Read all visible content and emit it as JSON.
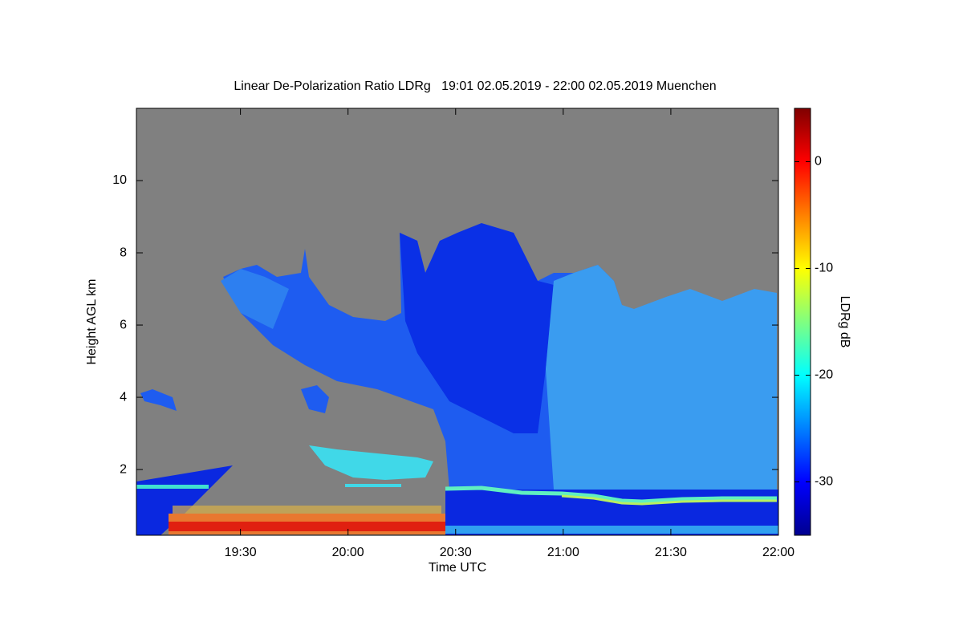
{
  "chart_data": {
    "type": "heatmap",
    "title": "Linear De-Polarization Ratio LDRg   19:01 02.05.2019 - 22:00 02.05.2019 Muenchen",
    "x_label": "Time UTC",
    "y_label": "Height AGL km",
    "xlim": [
      19.0167,
      22.0
    ],
    "xticks": [
      {
        "value": 19.5,
        "label": "19:30"
      },
      {
        "value": 20.0,
        "label": "20:00"
      },
      {
        "value": 20.5,
        "label": "20:30"
      },
      {
        "value": 21.0,
        "label": "21:00"
      },
      {
        "value": 21.5,
        "label": "21:30"
      },
      {
        "value": 22.0,
        "label": "22:00"
      }
    ],
    "ylim": [
      0.18,
      12
    ],
    "yticks": [
      2,
      4,
      6,
      8,
      10
    ],
    "colorbar": {
      "label": "LDRg dB",
      "clim": [
        -35,
        5
      ],
      "ticks": [
        0,
        -10,
        -20,
        -30
      ],
      "colors": [
        "#00008f",
        "#0000ff",
        "#0080ff",
        "#00ffff",
        "#80ff80",
        "#ffff00",
        "#ff8000",
        "#ff0000",
        "#800000"
      ]
    }
  }
}
